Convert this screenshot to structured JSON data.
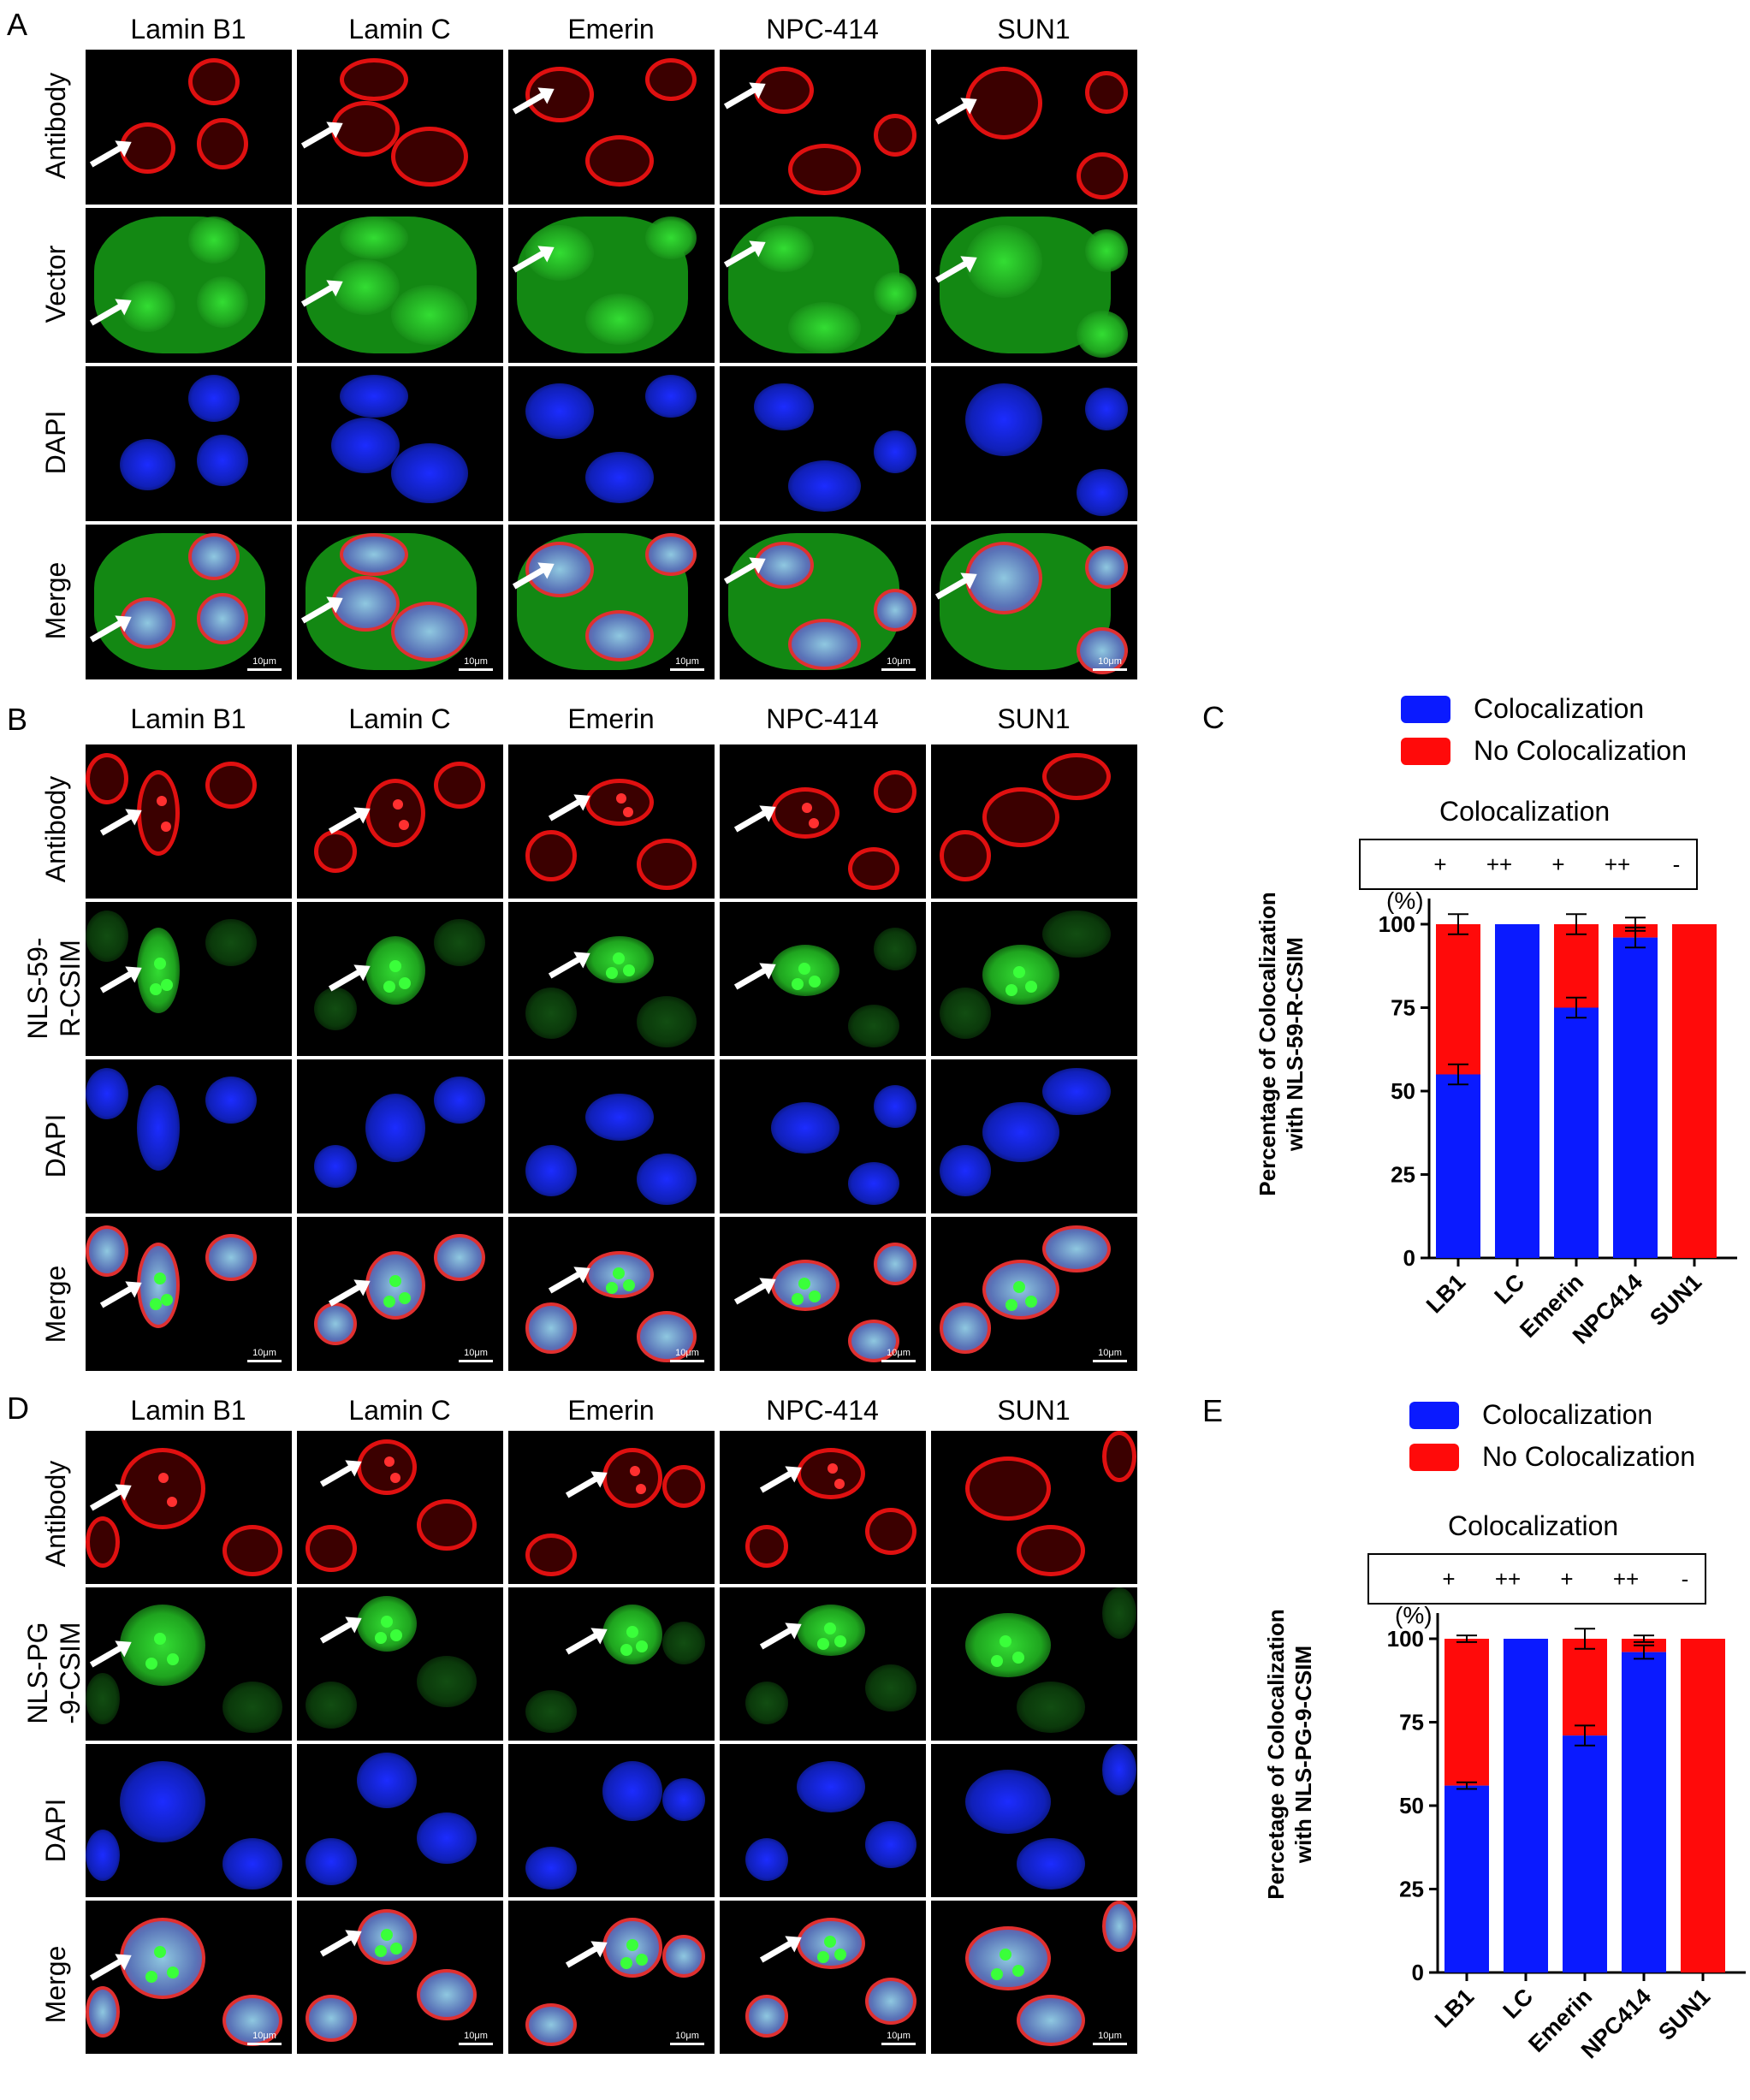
{
  "panels": {
    "A": {
      "letter": "A",
      "columns": [
        "Lamin B1",
        "Lamin C",
        "Emerin",
        "NPC-414",
        "SUN1"
      ],
      "rows": [
        "Antibody",
        "Vector",
        "DAPI",
        "Merge"
      ]
    },
    "B": {
      "letter": "B",
      "columns": [
        "Lamin B1",
        "Lamin C",
        "Emerin",
        "NPC-414",
        "SUN1"
      ],
      "rows": [
        "Antibody",
        "NLS-59-\nR-CSIM",
        "DAPI",
        "Merge"
      ]
    },
    "D": {
      "letter": "D",
      "columns": [
        "Lamin B1",
        "Lamin C",
        "Emerin",
        "NPC-414",
        "SUN1"
      ],
      "rows": [
        "Antibody",
        "NLS-PG\n-9-CSIM",
        "DAPI",
        "Merge"
      ]
    }
  },
  "scale_label": "10μm",
  "colors": {
    "blue": "#0a1aff",
    "red": "#ff0a0a",
    "antibody": "#e01010",
    "vector": "#22cc22",
    "dapi": "#1428ff"
  },
  "chart_data": [
    {
      "letter": "C",
      "type": "bar",
      "stacked": true,
      "legend": [
        "Colocalization",
        "No Colocalization"
      ],
      "coloc_title": "Colocalization",
      "coloc_symbols": [
        "+",
        "++",
        "+",
        "++",
        "-"
      ],
      "categories": [
        "LB1",
        "LC",
        "Emerin",
        "NPC414",
        "SUN1"
      ],
      "series": [
        {
          "name": "Colocalization",
          "values": [
            55,
            100,
            75,
            96,
            0
          ],
          "errors": [
            3,
            0,
            3,
            3,
            0
          ]
        },
        {
          "name": "No Colocalization",
          "values": [
            45,
            0,
            25,
            4,
            100
          ],
          "errors": [
            3,
            0,
            3,
            2,
            0
          ]
        }
      ],
      "unit": "(%)",
      "ylabel": "Percentage of Colocalization\nwith NLS-59-R-CSIM",
      "yticks": [
        0,
        25,
        50,
        75,
        100
      ],
      "ylim": [
        0,
        100
      ]
    },
    {
      "letter": "E",
      "type": "bar",
      "stacked": true,
      "legend": [
        "Colocalization",
        "No Colocalization"
      ],
      "coloc_title": "Colocalization",
      "coloc_symbols": [
        "+",
        "++",
        "+",
        "++",
        "-"
      ],
      "categories": [
        "LB1",
        "LC",
        "Emerin",
        "NPC414",
        "SUN1"
      ],
      "series": [
        {
          "name": "Colocalization",
          "values": [
            56,
            100,
            71,
            96,
            0
          ],
          "errors": [
            1,
            0,
            3,
            2,
            0
          ]
        },
        {
          "name": "No Colocalization",
          "values": [
            44,
            0,
            29,
            4,
            100
          ],
          "errors": [
            1,
            0,
            3,
            1,
            0
          ]
        }
      ],
      "unit": "(%)",
      "ylabel": "Percetage of Colocalization\nwith NLS-PG-9-CSIM",
      "yticks": [
        0,
        25,
        50,
        75,
        100
      ],
      "ylim": [
        0,
        100
      ]
    }
  ]
}
